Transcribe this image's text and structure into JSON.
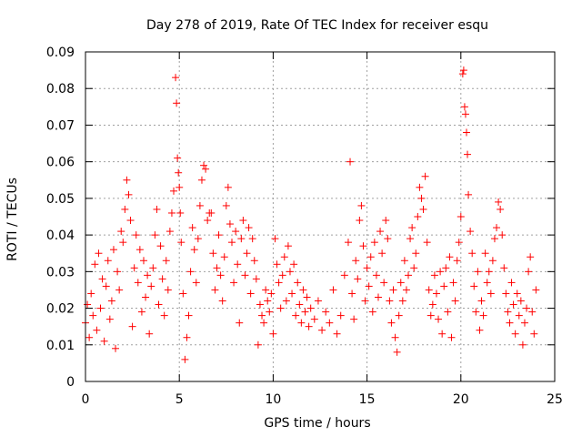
{
  "chart_data": {
    "type": "scatter",
    "title": "Day 278 of 2019, Rate Of TEC Index for receiver esqu",
    "xlabel": "GPS time / hours",
    "ylabel": "ROTI / TECUs",
    "xlim": [
      0,
      25
    ],
    "ylim": [
      0,
      0.09
    ],
    "xticks": [
      0,
      5,
      10,
      15,
      20,
      25
    ],
    "xtick_labels": [
      "0",
      "5",
      "10",
      "15",
      "20",
      "25"
    ],
    "yticks": [
      0,
      0.01,
      0.02,
      0.03,
      0.04,
      0.05,
      0.06,
      0.07,
      0.08,
      0.09
    ],
    "ytick_labels": [
      "0",
      "0.01",
      "0.02",
      "0.03",
      "0.04",
      "0.05",
      "0.06",
      "0.07",
      "0.08",
      "0.09"
    ],
    "grid": true,
    "marker": "+",
    "color": "#ff0000",
    "data_x_range_hours": [
      0,
      24
    ],
    "series": [
      {
        "name": "ROTI",
        "points": [
          [
            0.0,
            0.016
          ],
          [
            0.1,
            0.021
          ],
          [
            0.2,
            0.012
          ],
          [
            0.3,
            0.024
          ],
          [
            0.4,
            0.018
          ],
          [
            0.5,
            0.032
          ],
          [
            0.6,
            0.014
          ],
          [
            0.7,
            0.035
          ],
          [
            0.8,
            0.02
          ],
          [
            0.9,
            0.028
          ],
          [
            1.0,
            0.011
          ],
          [
            1.1,
            0.026
          ],
          [
            1.2,
            0.033
          ],
          [
            1.3,
            0.017
          ],
          [
            1.4,
            0.022
          ],
          [
            1.5,
            0.036
          ],
          [
            1.6,
            0.009
          ],
          [
            1.7,
            0.03
          ],
          [
            1.8,
            0.025
          ],
          [
            1.9,
            0.041
          ],
          [
            2.0,
            0.038
          ],
          [
            2.1,
            0.047
          ],
          [
            2.2,
            0.055
          ],
          [
            2.3,
            0.051
          ],
          [
            2.4,
            0.044
          ],
          [
            2.5,
            0.015
          ],
          [
            2.6,
            0.031
          ],
          [
            2.7,
            0.04
          ],
          [
            2.8,
            0.027
          ],
          [
            2.9,
            0.036
          ],
          [
            3.0,
            0.019
          ],
          [
            3.1,
            0.033
          ],
          [
            3.2,
            0.023
          ],
          [
            3.3,
            0.029
          ],
          [
            3.4,
            0.013
          ],
          [
            3.5,
            0.026
          ],
          [
            3.6,
            0.031
          ],
          [
            3.7,
            0.04
          ],
          [
            3.8,
            0.047
          ],
          [
            3.9,
            0.021
          ],
          [
            4.0,
            0.037
          ],
          [
            4.1,
            0.028
          ],
          [
            4.2,
            0.018
          ],
          [
            4.3,
            0.033
          ],
          [
            4.4,
            0.025
          ],
          [
            4.5,
            0.041
          ],
          [
            4.6,
            0.046
          ],
          [
            4.7,
            0.052
          ],
          [
            4.8,
            0.083
          ],
          [
            4.85,
            0.076
          ],
          [
            4.9,
            0.061
          ],
          [
            4.95,
            0.057
          ],
          [
            5.0,
            0.053
          ],
          [
            5.05,
            0.046
          ],
          [
            5.1,
            0.038
          ],
          [
            5.2,
            0.024
          ],
          [
            5.3,
            0.006
          ],
          [
            5.4,
            0.012
          ],
          [
            5.5,
            0.018
          ],
          [
            5.6,
            0.03
          ],
          [
            5.7,
            0.042
          ],
          [
            5.8,
            0.036
          ],
          [
            5.9,
            0.027
          ],
          [
            6.0,
            0.039
          ],
          [
            6.1,
            0.048
          ],
          [
            6.2,
            0.055
          ],
          [
            6.3,
            0.059
          ],
          [
            6.4,
            0.058
          ],
          [
            6.5,
            0.044
          ],
          [
            6.6,
            0.046
          ],
          [
            6.7,
            0.046
          ],
          [
            6.8,
            0.035
          ],
          [
            6.9,
            0.025
          ],
          [
            7.0,
            0.031
          ],
          [
            7.1,
            0.04
          ],
          [
            7.2,
            0.029
          ],
          [
            7.3,
            0.022
          ],
          [
            7.4,
            0.034
          ],
          [
            7.5,
            0.048
          ],
          [
            7.6,
            0.053
          ],
          [
            7.7,
            0.043
          ],
          [
            7.8,
            0.038
          ],
          [
            7.9,
            0.027
          ],
          [
            8.0,
            0.041
          ],
          [
            8.1,
            0.032
          ],
          [
            8.2,
            0.016
          ],
          [
            8.3,
            0.039
          ],
          [
            8.4,
            0.044
          ],
          [
            8.5,
            0.029
          ],
          [
            8.6,
            0.035
          ],
          [
            8.7,
            0.042
          ],
          [
            8.8,
            0.024
          ],
          [
            8.9,
            0.039
          ],
          [
            9.0,
            0.033
          ],
          [
            9.1,
            0.028
          ],
          [
            9.2,
            0.01
          ],
          [
            9.3,
            0.021
          ],
          [
            9.4,
            0.018
          ],
          [
            9.5,
            0.016
          ],
          [
            9.6,
            0.025
          ],
          [
            9.7,
            0.022
          ],
          [
            9.8,
            0.019
          ],
          [
            9.9,
            0.024
          ],
          [
            10.0,
            0.013
          ],
          [
            10.1,
            0.039
          ],
          [
            10.2,
            0.032
          ],
          [
            10.3,
            0.027
          ],
          [
            10.4,
            0.02
          ],
          [
            10.5,
            0.029
          ],
          [
            10.6,
            0.034
          ],
          [
            10.7,
            0.022
          ],
          [
            10.8,
            0.037
          ],
          [
            10.9,
            0.03
          ],
          [
            11.0,
            0.024
          ],
          [
            11.1,
            0.032
          ],
          [
            11.2,
            0.018
          ],
          [
            11.3,
            0.027
          ],
          [
            11.4,
            0.021
          ],
          [
            11.5,
            0.016
          ],
          [
            11.6,
            0.025
          ],
          [
            11.7,
            0.019
          ],
          [
            11.8,
            0.023
          ],
          [
            11.9,
            0.015
          ],
          [
            12.0,
            0.02
          ],
          [
            12.2,
            0.017
          ],
          [
            12.4,
            0.022
          ],
          [
            12.6,
            0.014
          ],
          [
            12.8,
            0.019
          ],
          [
            13.0,
            0.016
          ],
          [
            13.2,
            0.025
          ],
          [
            13.4,
            0.013
          ],
          [
            13.6,
            0.018
          ],
          [
            13.8,
            0.029
          ],
          [
            14.0,
            0.038
          ],
          [
            14.1,
            0.06
          ],
          [
            14.2,
            0.024
          ],
          [
            14.3,
            0.017
          ],
          [
            14.4,
            0.033
          ],
          [
            14.5,
            0.028
          ],
          [
            14.6,
            0.044
          ],
          [
            14.7,
            0.048
          ],
          [
            14.8,
            0.037
          ],
          [
            14.9,
            0.022
          ],
          [
            15.0,
            0.031
          ],
          [
            15.1,
            0.026
          ],
          [
            15.2,
            0.034
          ],
          [
            15.3,
            0.019
          ],
          [
            15.4,
            0.038
          ],
          [
            15.5,
            0.029
          ],
          [
            15.6,
            0.023
          ],
          [
            15.7,
            0.041
          ],
          [
            15.8,
            0.035
          ],
          [
            15.9,
            0.027
          ],
          [
            16.0,
            0.044
          ],
          [
            16.1,
            0.039
          ],
          [
            16.2,
            0.022
          ],
          [
            16.3,
            0.016
          ],
          [
            16.4,
            0.025
          ],
          [
            16.5,
            0.012
          ],
          [
            16.6,
            0.008
          ],
          [
            16.7,
            0.018
          ],
          [
            16.8,
            0.027
          ],
          [
            16.9,
            0.022
          ],
          [
            17.0,
            0.033
          ],
          [
            17.1,
            0.025
          ],
          [
            17.2,
            0.029
          ],
          [
            17.3,
            0.039
          ],
          [
            17.4,
            0.042
          ],
          [
            17.5,
            0.031
          ],
          [
            17.6,
            0.035
          ],
          [
            17.7,
            0.045
          ],
          [
            17.8,
            0.053
          ],
          [
            17.9,
            0.05
          ],
          [
            18.0,
            0.047
          ],
          [
            18.1,
            0.056
          ],
          [
            18.2,
            0.038
          ],
          [
            18.3,
            0.025
          ],
          [
            18.4,
            0.018
          ],
          [
            18.5,
            0.021
          ],
          [
            18.6,
            0.029
          ],
          [
            18.7,
            0.024
          ],
          [
            18.8,
            0.017
          ],
          [
            18.9,
            0.03
          ],
          [
            19.0,
            0.013
          ],
          [
            19.1,
            0.026
          ],
          [
            19.2,
            0.031
          ],
          [
            19.3,
            0.019
          ],
          [
            19.4,
            0.034
          ],
          [
            19.5,
            0.012
          ],
          [
            19.6,
            0.027
          ],
          [
            19.7,
            0.022
          ],
          [
            19.8,
            0.033
          ],
          [
            19.9,
            0.038
          ],
          [
            20.0,
            0.045
          ],
          [
            20.1,
            0.084
          ],
          [
            20.15,
            0.085
          ],
          [
            20.2,
            0.075
          ],
          [
            20.25,
            0.073
          ],
          [
            20.3,
            0.068
          ],
          [
            20.35,
            0.062
          ],
          [
            20.4,
            0.051
          ],
          [
            20.5,
            0.041
          ],
          [
            20.6,
            0.035
          ],
          [
            20.7,
            0.026
          ],
          [
            20.8,
            0.019
          ],
          [
            20.9,
            0.03
          ],
          [
            21.0,
            0.014
          ],
          [
            21.1,
            0.022
          ],
          [
            21.2,
            0.018
          ],
          [
            21.3,
            0.035
          ],
          [
            21.4,
            0.027
          ],
          [
            21.5,
            0.03
          ],
          [
            21.6,
            0.024
          ],
          [
            21.7,
            0.033
          ],
          [
            21.8,
            0.039
          ],
          [
            21.9,
            0.042
          ],
          [
            22.0,
            0.049
          ],
          [
            22.1,
            0.047
          ],
          [
            22.2,
            0.04
          ],
          [
            22.3,
            0.031
          ],
          [
            22.4,
            0.024
          ],
          [
            22.5,
            0.019
          ],
          [
            22.6,
            0.016
          ],
          [
            22.7,
            0.027
          ],
          [
            22.8,
            0.021
          ],
          [
            22.9,
            0.013
          ],
          [
            23.0,
            0.024
          ],
          [
            23.1,
            0.018
          ],
          [
            23.2,
            0.022
          ],
          [
            23.3,
            0.01
          ],
          [
            23.4,
            0.016
          ],
          [
            23.5,
            0.02
          ],
          [
            23.6,
            0.03
          ],
          [
            23.7,
            0.034
          ],
          [
            23.8,
            0.019
          ],
          [
            23.9,
            0.013
          ],
          [
            24.0,
            0.025
          ]
        ]
      }
    ]
  }
}
